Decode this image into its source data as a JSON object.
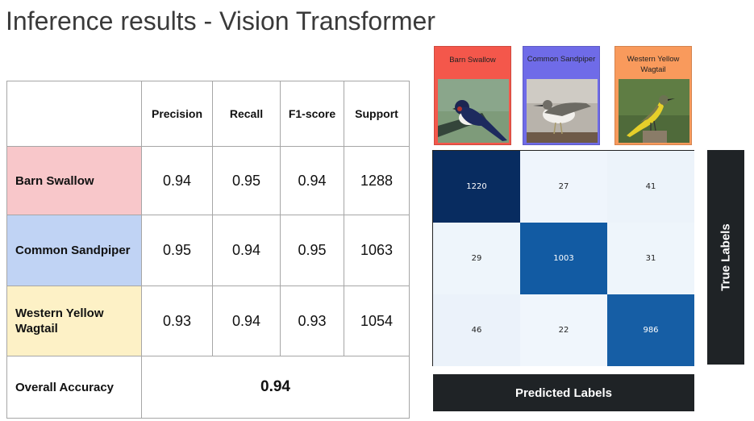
{
  "title": "Inference results - Vision Transformer",
  "metrics_table": {
    "headers": [
      "Precision",
      "Recall",
      "F1-score",
      "Support"
    ],
    "rows": [
      {
        "label": "Barn Swallow",
        "precision": "0.94",
        "recall": "0.95",
        "f1": "0.94",
        "support": "1288",
        "color": "#f8c7ca"
      },
      {
        "label": "Common Sandpiper",
        "precision": "0.95",
        "recall": "0.94",
        "f1": "0.95",
        "support": "1063",
        "color": "#c0d3f4"
      },
      {
        "label": "Western Yellow Wagtail",
        "precision": "0.93",
        "recall": "0.94",
        "f1": "0.93",
        "support": "1054",
        "color": "#fdf1c6"
      }
    ],
    "overall_label": "Overall Accuracy",
    "overall_value": "0.94"
  },
  "class_cards": [
    {
      "label": "Barn Swallow",
      "color": "#f4574b"
    },
    {
      "label": "Common Sandpiper",
      "color": "#6f6be8"
    },
    {
      "label": "Western Yellow Wagtail",
      "color": "#f99a5c"
    }
  ],
  "confusion_matrix": {
    "values": [
      [
        1220,
        27,
        41
      ],
      [
        29,
        1003,
        31
      ],
      [
        46,
        22,
        986
      ]
    ],
    "x_label": "Predicted Labels",
    "y_label": "True Labels",
    "colormap": "Blues"
  }
}
